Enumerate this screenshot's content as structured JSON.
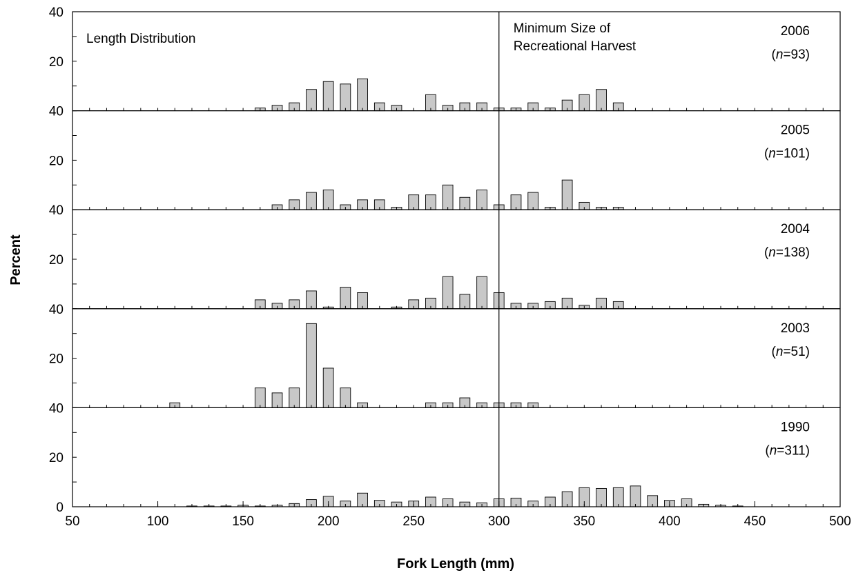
{
  "chart_data": {
    "type": "bar",
    "title": "Length Distribution",
    "xlabel": "Fork Length (mm)",
    "ylabel": "Percent",
    "xlim": [
      50,
      500
    ],
    "x_ticks": [
      50,
      100,
      150,
      200,
      250,
      300,
      350,
      400,
      450,
      500
    ],
    "ylim": [
      0,
      40
    ],
    "y_tick_labels": [
      "40",
      "20",
      "0"
    ],
    "reference_line": {
      "x": 300,
      "label_line1": "Minimum Size of",
      "label_line2": "Recreational Harvest"
    },
    "bar_color": "#c8c8c8",
    "n_prefix": "n",
    "panels": [
      {
        "name": "2006",
        "n": "93",
        "year_label": "2006",
        "n_label": "=93)",
        "points": [
          [
            160,
            1.1
          ],
          [
            170,
            2.2
          ],
          [
            180,
            3.2
          ],
          [
            190,
            8.6
          ],
          [
            200,
            11.8
          ],
          [
            210,
            10.8
          ],
          [
            220,
            12.9
          ],
          [
            230,
            3.2
          ],
          [
            240,
            2.2
          ],
          [
            260,
            6.5
          ],
          [
            270,
            2.2
          ],
          [
            280,
            3.2
          ],
          [
            290,
            3.2
          ],
          [
            300,
            1.1
          ],
          [
            310,
            1.1
          ],
          [
            320,
            3.2
          ],
          [
            330,
            1.1
          ],
          [
            340,
            4.3
          ],
          [
            350,
            6.5
          ],
          [
            360,
            8.6
          ],
          [
            370,
            3.2
          ]
        ]
      },
      {
        "name": "2005",
        "n": "101",
        "year_label": "2005",
        "n_label": "=101)",
        "points": [
          [
            170,
            2
          ],
          [
            180,
            4
          ],
          [
            190,
            7
          ],
          [
            200,
            8
          ],
          [
            210,
            2
          ],
          [
            220,
            4
          ],
          [
            230,
            4
          ],
          [
            240,
            1
          ],
          [
            250,
            6
          ],
          [
            260,
            6
          ],
          [
            270,
            10
          ],
          [
            280,
            5
          ],
          [
            290,
            8
          ],
          [
            300,
            2
          ],
          [
            310,
            6
          ],
          [
            320,
            7
          ],
          [
            330,
            1
          ],
          [
            340,
            12
          ],
          [
            350,
            3
          ],
          [
            360,
            1
          ],
          [
            370,
            1
          ]
        ]
      },
      {
        "name": "2004",
        "n": "138",
        "year_label": "2004",
        "n_label": "=138)",
        "points": [
          [
            160,
            3.6
          ],
          [
            170,
            2.2
          ],
          [
            180,
            3.6
          ],
          [
            190,
            7.2
          ],
          [
            200,
            0.7
          ],
          [
            210,
            8.7
          ],
          [
            220,
            6.5
          ],
          [
            240,
            0.7
          ],
          [
            250,
            3.6
          ],
          [
            260,
            4.3
          ],
          [
            270,
            13
          ],
          [
            280,
            5.8
          ],
          [
            290,
            13
          ],
          [
            300,
            6.5
          ],
          [
            310,
            2.2
          ],
          [
            320,
            2.2
          ],
          [
            330,
            2.9
          ],
          [
            340,
            4.3
          ],
          [
            350,
            1.4
          ],
          [
            360,
            4.3
          ],
          [
            370,
            2.9
          ]
        ]
      },
      {
        "name": "2003",
        "n": "51",
        "year_label": "2003",
        "n_label": "=51)",
        "points": [
          [
            110,
            2
          ],
          [
            160,
            8
          ],
          [
            170,
            6
          ],
          [
            180,
            8
          ],
          [
            190,
            34
          ],
          [
            200,
            16
          ],
          [
            210,
            8
          ],
          [
            220,
            2
          ],
          [
            260,
            2
          ],
          [
            270,
            2
          ],
          [
            280,
            4
          ],
          [
            290,
            2
          ],
          [
            300,
            2
          ],
          [
            310,
            2
          ],
          [
            320,
            2
          ]
        ]
      },
      {
        "name": "1990",
        "n": "311",
        "year_label": "1990",
        "n_label": "=311)",
        "points": [
          [
            120,
            0.3
          ],
          [
            130,
            0.3
          ],
          [
            140,
            0.3
          ],
          [
            150,
            0.6
          ],
          [
            160,
            0.3
          ],
          [
            170,
            0.6
          ],
          [
            180,
            1.3
          ],
          [
            190,
            2.9
          ],
          [
            200,
            4.2
          ],
          [
            210,
            2.3
          ],
          [
            220,
            5.5
          ],
          [
            230,
            2.6
          ],
          [
            240,
            1.9
          ],
          [
            250,
            2.3
          ],
          [
            260,
            3.9
          ],
          [
            270,
            3.2
          ],
          [
            280,
            1.9
          ],
          [
            290,
            1.6
          ],
          [
            300,
            3.2
          ],
          [
            310,
            3.5
          ],
          [
            320,
            2.3
          ],
          [
            330,
            3.9
          ],
          [
            340,
            6.1
          ],
          [
            350,
            7.7
          ],
          [
            360,
            7.4
          ],
          [
            370,
            7.7
          ],
          [
            380,
            8.4
          ],
          [
            390,
            4.5
          ],
          [
            400,
            2.6
          ],
          [
            410,
            3.2
          ],
          [
            420,
            1
          ],
          [
            430,
            0.6
          ],
          [
            440,
            0.3
          ]
        ]
      }
    ]
  }
}
